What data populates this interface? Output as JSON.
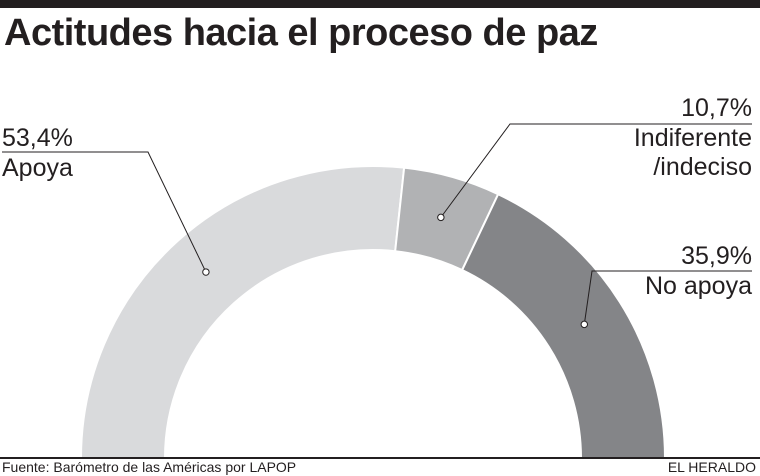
{
  "title": "Actitudes hacia el proceso de paz",
  "colors": {
    "apoya": "#d9dadc",
    "indiferente": "#b1b2b4",
    "no_apoya": "#848588",
    "text": "#231f20"
  },
  "labels": {
    "apoya_pct": "53,4%",
    "apoya_name": "Apoya",
    "indiferente_pct": "10,7%",
    "indiferente_line1": "Indiferente",
    "indiferente_line2": "/indeciso",
    "no_apoya_pct": "35,9%",
    "no_apoya_name": "No apoya"
  },
  "footer": {
    "source": "Fuente: Barómetro de las Américas por LAPOP",
    "brand": "EL HERALDO"
  },
  "chart_data": {
    "type": "pie",
    "variant": "semi-donut",
    "title": "Actitudes hacia el proceso de paz",
    "unit": "%",
    "categories": [
      "Apoya",
      "Indiferente /indeciso",
      "No apoya"
    ],
    "values": [
      53.4,
      10.7,
      35.9
    ],
    "value_labels": [
      "53,4%",
      "10,7%",
      "35,9%"
    ],
    "legend": "none"
  }
}
